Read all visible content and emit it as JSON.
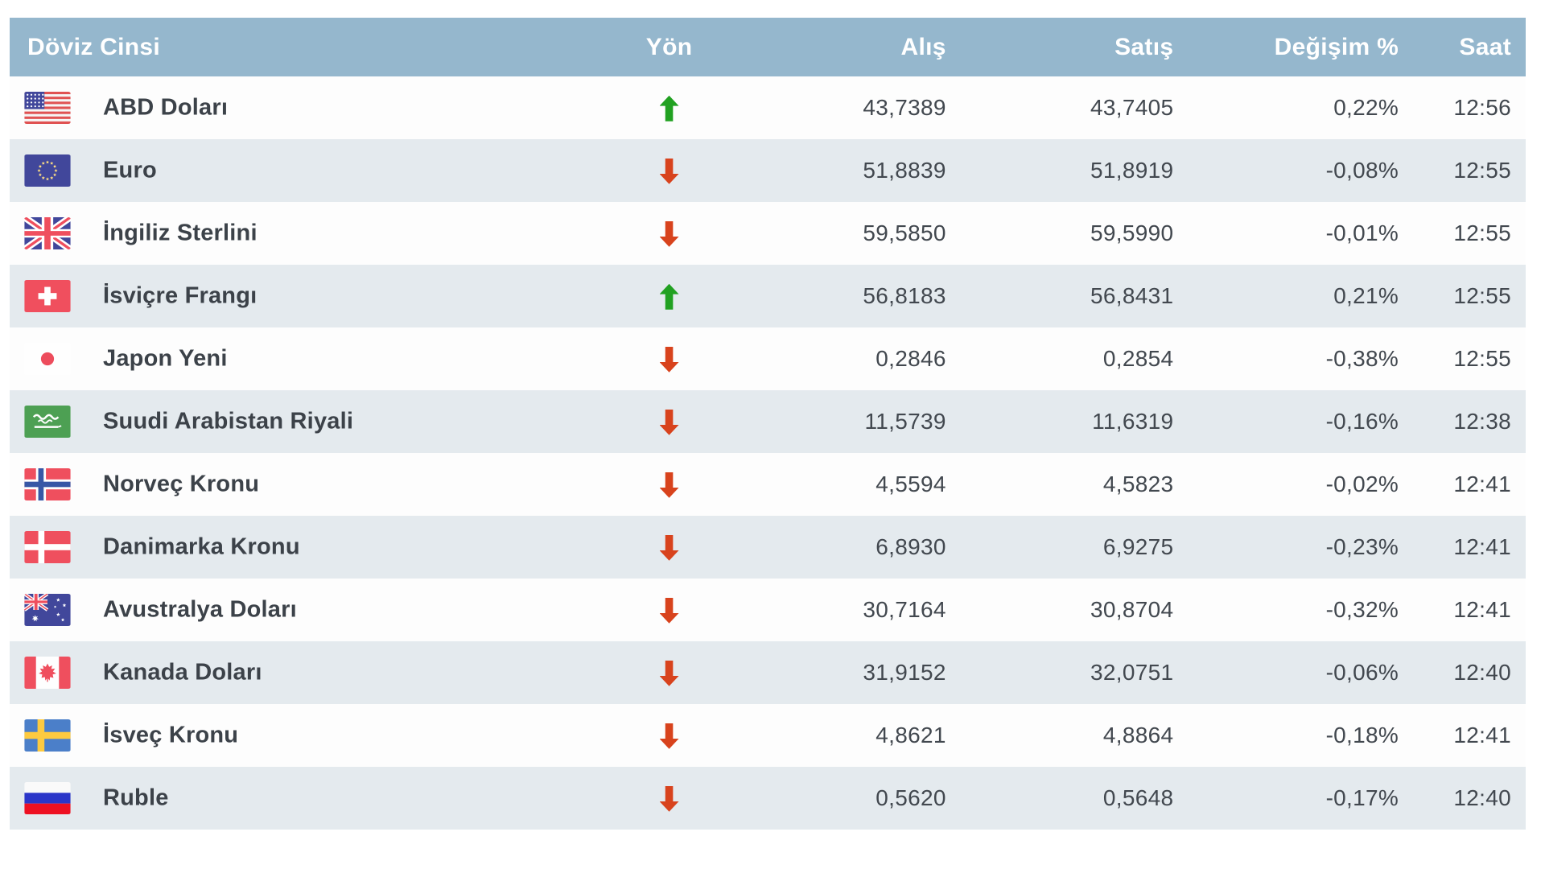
{
  "table": {
    "columns": [
      {
        "key": "currency",
        "label": "Döviz Cinsi"
      },
      {
        "key": "direction",
        "label": "Yön"
      },
      {
        "key": "buy",
        "label": "Alış"
      },
      {
        "key": "sell",
        "label": "Satış"
      },
      {
        "key": "change",
        "label": "Değişim %"
      },
      {
        "key": "time",
        "label": "Saat"
      }
    ],
    "rows": [
      {
        "flag": "us",
        "currency": "ABD Doları",
        "direction": "up",
        "buy": "43,7389",
        "sell": "43,7405",
        "change": "0,22%",
        "time": "12:56"
      },
      {
        "flag": "eu",
        "currency": "Euro",
        "direction": "down",
        "buy": "51,8839",
        "sell": "51,8919",
        "change": "-0,08%",
        "time": "12:55"
      },
      {
        "flag": "gb",
        "currency": "İngiliz Sterlini",
        "direction": "down",
        "buy": "59,5850",
        "sell": "59,5990",
        "change": "-0,01%",
        "time": "12:55"
      },
      {
        "flag": "ch",
        "currency": "İsviçre Frangı",
        "direction": "up",
        "buy": "56,8183",
        "sell": "56,8431",
        "change": "0,21%",
        "time": "12:55"
      },
      {
        "flag": "jp",
        "currency": "Japon Yeni",
        "direction": "down",
        "buy": "0,2846",
        "sell": "0,2854",
        "change": "-0,38%",
        "time": "12:55"
      },
      {
        "flag": "sa",
        "currency": "Suudi Arabistan Riyali",
        "direction": "down",
        "buy": "11,5739",
        "sell": "11,6319",
        "change": "-0,16%",
        "time": "12:38"
      },
      {
        "flag": "no",
        "currency": "Norveç Kronu",
        "direction": "down",
        "buy": "4,5594",
        "sell": "4,5823",
        "change": "-0,02%",
        "time": "12:41"
      },
      {
        "flag": "dk",
        "currency": "Danimarka Kronu",
        "direction": "down",
        "buy": "6,8930",
        "sell": "6,9275",
        "change": "-0,23%",
        "time": "12:41"
      },
      {
        "flag": "au",
        "currency": "Avustralya Doları",
        "direction": "down",
        "buy": "30,7164",
        "sell": "30,8704",
        "change": "-0,32%",
        "time": "12:41"
      },
      {
        "flag": "ca",
        "currency": "Kanada Doları",
        "direction": "down",
        "buy": "31,9152",
        "sell": "32,0751",
        "change": "-0,06%",
        "time": "12:40"
      },
      {
        "flag": "se",
        "currency": "İsveç Kronu",
        "direction": "down",
        "buy": "4,8621",
        "sell": "4,8864",
        "change": "-0,18%",
        "time": "12:41"
      },
      {
        "flag": "ru",
        "currency": "Ruble",
        "direction": "down",
        "buy": "0,5620",
        "sell": "0,5648",
        "change": "-0,17%",
        "time": "12:40"
      }
    ]
  },
  "colors": {
    "header_bg": "#95b7cd",
    "row_bg": "#fdfdfd",
    "row_alt_bg": "#e4eaee",
    "up_arrow": "#21a121",
    "down_arrow": "#d8431d",
    "text": "#3c4249"
  }
}
